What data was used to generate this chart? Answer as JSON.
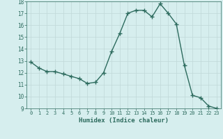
{
  "x": [
    0,
    1,
    2,
    3,
    4,
    5,
    6,
    7,
    8,
    9,
    10,
    11,
    12,
    13,
    14,
    15,
    16,
    17,
    18,
    19,
    20,
    21,
    22,
    23
  ],
  "y": [
    12.9,
    12.4,
    12.1,
    12.1,
    11.9,
    11.7,
    11.5,
    11.1,
    11.2,
    12.0,
    13.8,
    15.3,
    17.0,
    17.25,
    17.25,
    16.7,
    17.8,
    17.0,
    16.1,
    12.6,
    10.1,
    9.9,
    9.2,
    9.0
  ],
  "xlabel": "Humidex (Indice chaleur)",
  "ylim": [
    9,
    18
  ],
  "xlim": [
    -0.5,
    23.5
  ],
  "yticks": [
    9,
    10,
    11,
    12,
    13,
    14,
    15,
    16,
    17,
    18
  ],
  "xticks": [
    0,
    1,
    2,
    3,
    4,
    5,
    6,
    7,
    8,
    9,
    10,
    11,
    12,
    13,
    14,
    15,
    16,
    17,
    18,
    19,
    20,
    21,
    22,
    23
  ],
  "line_color": "#2d6b5e",
  "marker_color": "#2d6b5e",
  "bg_color": "#d6eeee",
  "grid_color": "#c0d8d8",
  "xlabel_color": "#2d6b5e",
  "tick_color": "#2d6b5e"
}
